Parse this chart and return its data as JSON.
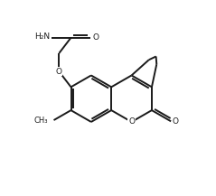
{
  "background_color": "#ffffff",
  "line_color": "#1a1a1a",
  "lw": 1.4,
  "xlim": [
    0,
    10
  ],
  "ylim": [
    0,
    9.1
  ],
  "figsize": [
    2.39,
    2.17
  ],
  "dpi": 100
}
